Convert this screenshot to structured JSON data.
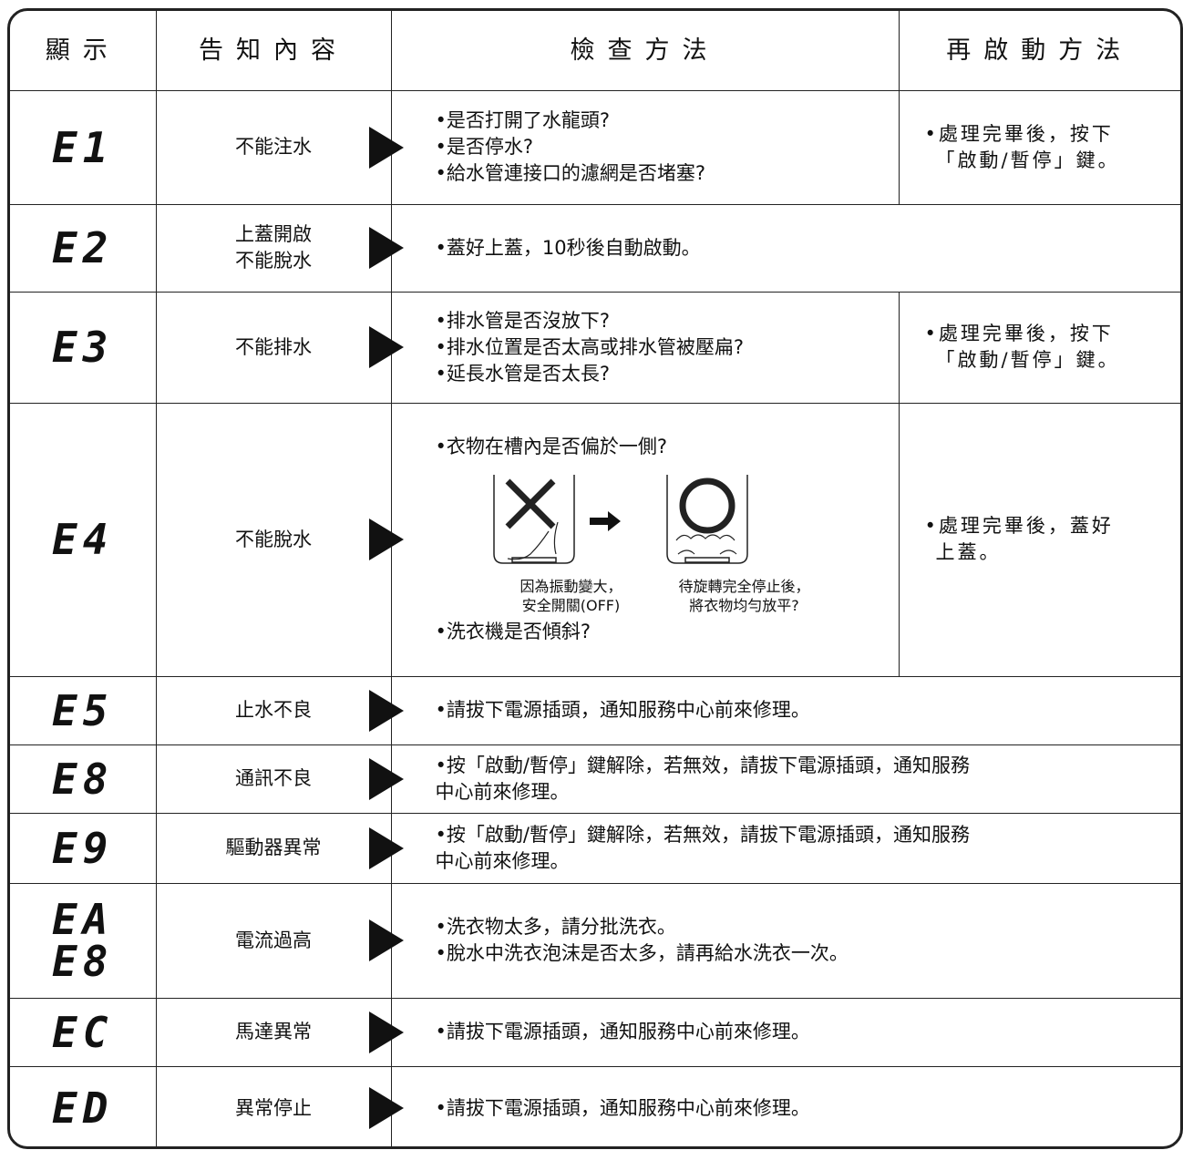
{
  "header": [
    "顯示",
    "告知內容",
    "檢查方法",
    "再啟動方法"
  ],
  "rows": [
    {
      "code": [
        "E1"
      ],
      "notice": [
        "不能注水"
      ],
      "check": [
        "•是否打開了水龍頭?",
        "•是否停水?",
        "•給水管連接口的濾網是否堵塞?"
      ],
      "restart": [
        "•處理完畢後，按下",
        "「啟動/暫停」鍵。"
      ]
    },
    {
      "code": [
        "E2"
      ],
      "notice": [
        "上蓋開啟",
        "不能脫水"
      ],
      "check": [
        "•蓋好上蓋，10秒後自動啟動。"
      ]
    },
    {
      "code": [
        "E3"
      ],
      "notice": [
        "不能排水"
      ],
      "check": [
        "•排水管是否沒放下?",
        "•排水位置是否太高或排水管被壓扁?",
        "•延長水管是否太長?"
      ],
      "restart": [
        "•處理完畢後，按下",
        "「啟動/暫停」鍵。"
      ]
    },
    {
      "code": [
        "E4"
      ],
      "notice": [
        "不能脫水"
      ],
      "check": [
        "•衣物在槽內是否偏於一側?",
        "•洗衣機是否傾斜?"
      ],
      "figure": {
        "captions": [
          [
            "因為振動變大，",
            "安全開關(OFF)"
          ],
          [
            "待旋轉完全停止後，",
            "將衣物均勻放平?"
          ]
        ]
      },
      "restart": [
        "•處理完畢後，蓋好",
        "上蓋。"
      ]
    },
    {
      "code": [
        "E5"
      ],
      "notice": [
        "止水不良"
      ],
      "check": [
        "•請拔下電源插頭，通知服務中心前來修理。"
      ]
    },
    {
      "code": [
        "E8"
      ],
      "notice": [
        "通訊不良"
      ],
      "check": [
        "•按「啟動/暫停」鍵解除，若無效，請拔下電源插頭，通知服務",
        "中心前來修理。"
      ]
    },
    {
      "code": [
        "E9"
      ],
      "notice": [
        "驅動器異常"
      ],
      "check": [
        "•按「啟動/暫停」鍵解除，若無效，請拔下電源插頭，通知服務",
        "中心前來修理。"
      ]
    },
    {
      "code": [
        "EA",
        "E8"
      ],
      "notice": [
        "電流過高"
      ],
      "check": [
        "•洗衣物太多，請分批洗衣。",
        "•脫水中洗衣泡沫是否太多，請再給水洗衣一次。"
      ]
    },
    {
      "code": [
        "EC"
      ],
      "notice": [
        "馬達異常"
      ],
      "check": [
        "•請拔下電源插頭，通知服務中心前來修理。"
      ]
    },
    {
      "code": [
        "ED"
      ],
      "notice": [
        "異常停止"
      ],
      "check": [
        "•請拔下電源插頭，通知服務中心前來修理。"
      ]
    }
  ]
}
